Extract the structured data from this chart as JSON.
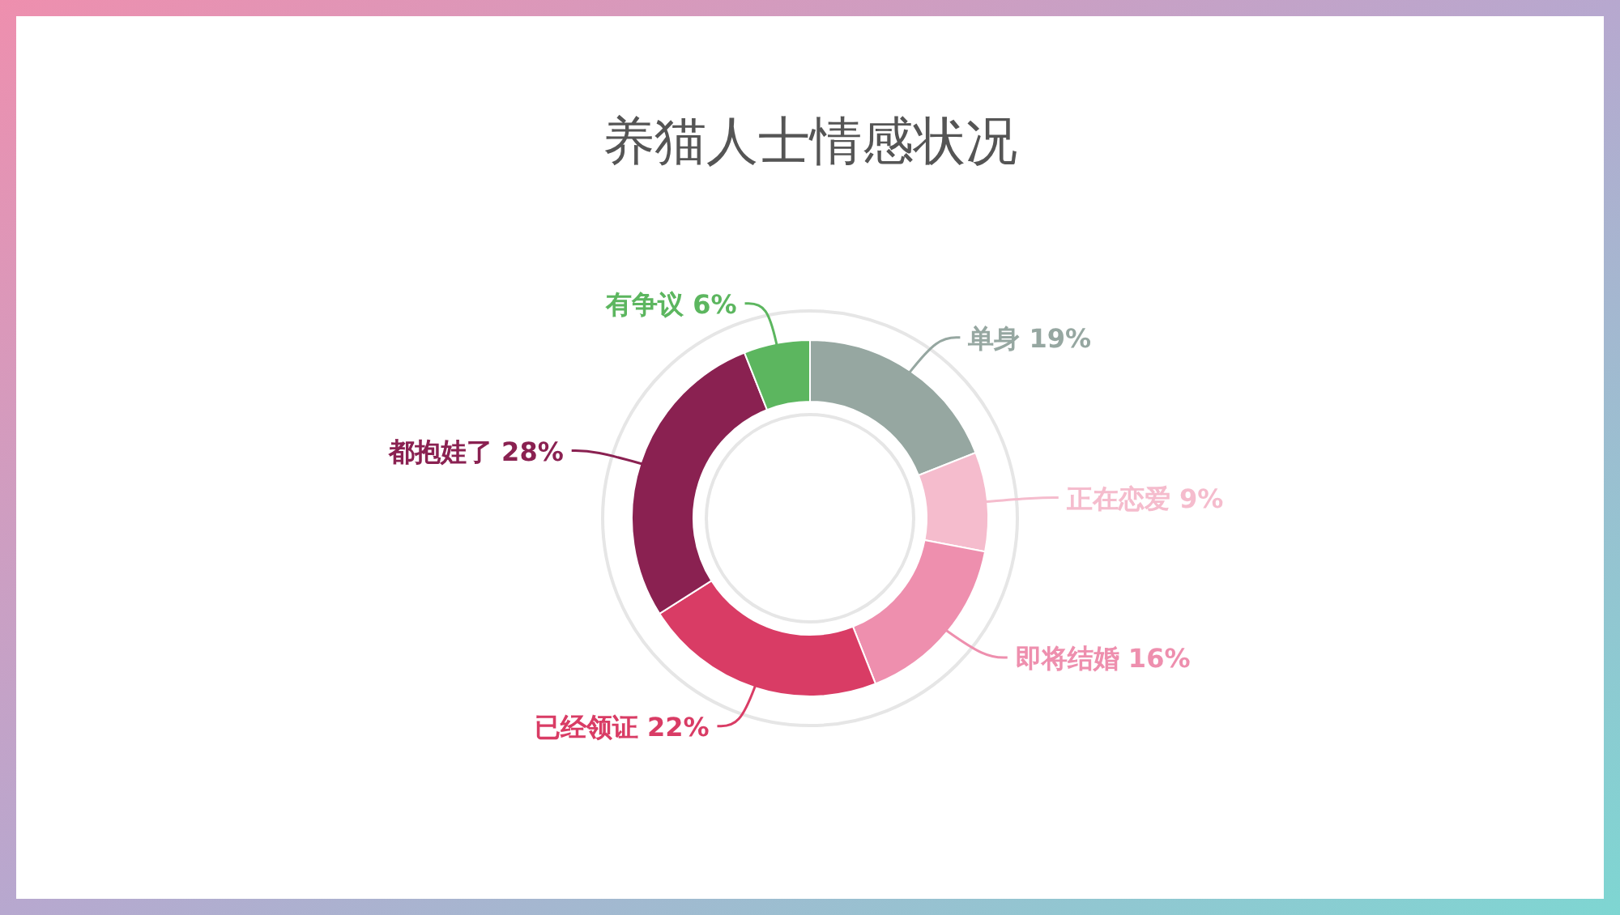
{
  "chart_data": {
    "type": "donut",
    "title": "养猫人士情感状况",
    "categories": [
      "单身",
      "正在恋爱",
      "即将结婚",
      "已经领证",
      "都抱娃了",
      "有争议"
    ],
    "values": [
      19,
      9,
      16,
      22,
      28,
      6
    ],
    "value_labels": [
      "19%",
      "9%",
      "16%",
      "22%",
      "28%",
      "6%"
    ],
    "colors": [
      "#96a7a1",
      "#f5bccd",
      "#ee8fae",
      "#d93c65",
      "#8a2151",
      "#5cb65f"
    ],
    "legend": false
  }
}
